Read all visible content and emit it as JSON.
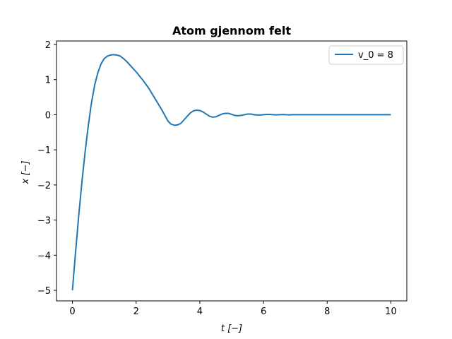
{
  "chart_data": {
    "type": "line",
    "title": "Atom gjennom felt",
    "xlabel": "t [−]",
    "ylabel": "x [−]",
    "xlim": [
      -0.5,
      10.5
    ],
    "ylim": [
      -5.3,
      2.1
    ],
    "xticks": [
      0,
      2,
      4,
      6,
      8,
      10
    ],
    "xtick_labels": [
      "0",
      "2",
      "4",
      "6",
      "8",
      "10"
    ],
    "yticks": [
      -5,
      -4,
      -3,
      -2,
      -1,
      0,
      1,
      2
    ],
    "ytick_labels": [
      "−5",
      "−4",
      "−3",
      "−2",
      "−1",
      "0",
      "1",
      "2"
    ],
    "grid": false,
    "legend_position": "top-right",
    "series": [
      {
        "name": "v_0 = 8",
        "color": "#1f77b4",
        "x": [
          0,
          0.1,
          0.2,
          0.3,
          0.4,
          0.5,
          0.6,
          0.7,
          0.8,
          0.9,
          1.0,
          1.1,
          1.2,
          1.3,
          1.4,
          1.5,
          1.6,
          1.7,
          1.8,
          1.9,
          2.0,
          2.2,
          2.4,
          2.6,
          2.8,
          3.0,
          3.1,
          3.2,
          3.3,
          3.4,
          3.5,
          3.6,
          3.7,
          3.8,
          3.9,
          4.0,
          4.1,
          4.2,
          4.3,
          4.4,
          4.5,
          4.6,
          4.7,
          4.8,
          4.9,
          5.0,
          5.1,
          5.2,
          5.3,
          5.4,
          5.5,
          5.6,
          5.7,
          5.8,
          5.9,
          6.0,
          6.1,
          6.2,
          6.3,
          6.4,
          6.5,
          6.6,
          6.7,
          6.8,
          6.9,
          7.0,
          7.5,
          8.0,
          9.0,
          10.0
        ],
        "y": [
          -5.0,
          -3.9,
          -2.85,
          -1.9,
          -1.05,
          -0.3,
          0.35,
          0.85,
          1.2,
          1.45,
          1.6,
          1.67,
          1.7,
          1.71,
          1.7,
          1.67,
          1.6,
          1.52,
          1.42,
          1.32,
          1.22,
          1.0,
          0.75,
          0.45,
          0.15,
          -0.18,
          -0.27,
          -0.3,
          -0.29,
          -0.25,
          -0.15,
          -0.05,
          0.05,
          0.11,
          0.13,
          0.12,
          0.08,
          0.02,
          -0.04,
          -0.07,
          -0.06,
          -0.02,
          0.02,
          0.04,
          0.04,
          0.01,
          -0.02,
          -0.03,
          -0.02,
          0.0,
          0.02,
          0.02,
          0.0,
          -0.01,
          -0.01,
          0.0,
          0.01,
          0.01,
          0.0,
          -0.005,
          0.0,
          0.005,
          0.0,
          -0.003,
          0.0,
          0.0,
          0.0,
          0.0,
          0.0,
          0.0
        ]
      }
    ]
  }
}
